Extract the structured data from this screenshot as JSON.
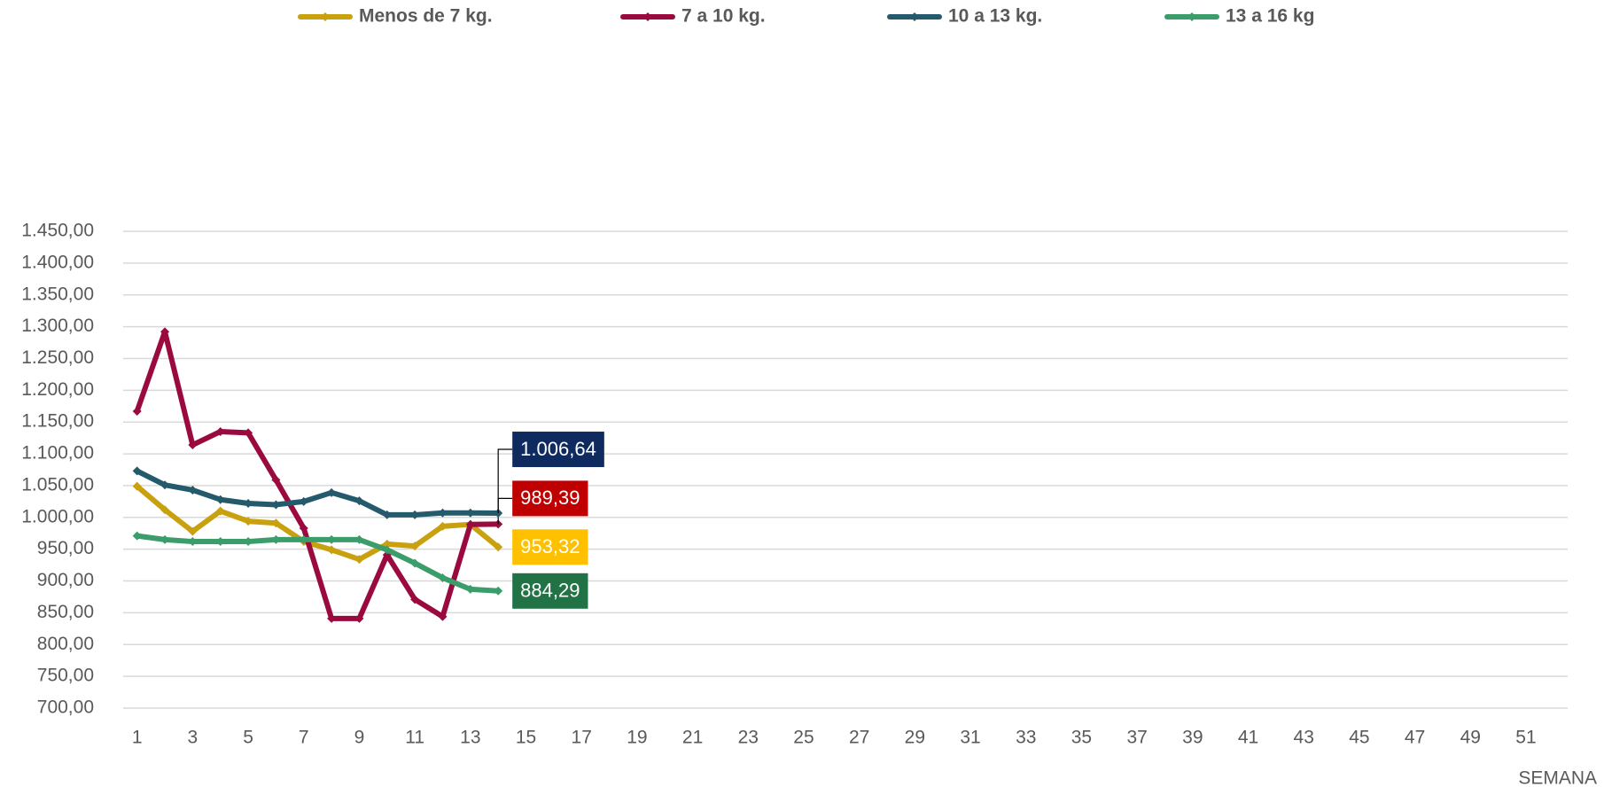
{
  "chart_data": {
    "type": "line",
    "x": [
      1,
      2,
      3,
      4,
      5,
      6,
      7,
      8,
      9,
      10,
      11,
      12,
      13,
      14
    ],
    "xlim": [
      0.5,
      52.5
    ],
    "xticks": [
      1,
      3,
      5,
      7,
      9,
      11,
      13,
      15,
      17,
      19,
      21,
      23,
      25,
      27,
      29,
      31,
      33,
      35,
      37,
      39,
      41,
      43,
      45,
      47,
      49,
      51
    ],
    "x_label": "SEMANA",
    "ylim": [
      700,
      1450
    ],
    "yticks": [
      {
        "value": 700,
        "label": "700,00"
      },
      {
        "value": 750,
        "label": "750,00"
      },
      {
        "value": 800,
        "label": "800,00"
      },
      {
        "value": 850,
        "label": "850,00"
      },
      {
        "value": 900,
        "label": "900,00"
      },
      {
        "value": 950,
        "label": "950,00"
      },
      {
        "value": 1000,
        "label": "1.000,00"
      },
      {
        "value": 1050,
        "label": "1.050,00"
      },
      {
        "value": 1100,
        "label": "1.100,00"
      },
      {
        "value": 1150,
        "label": "1.150,00"
      },
      {
        "value": 1200,
        "label": "1.200,00"
      },
      {
        "value": 1250,
        "label": "1.250,00"
      },
      {
        "value": 1300,
        "label": "1.300,00"
      },
      {
        "value": 1350,
        "label": "1.350,00"
      },
      {
        "value": 1400,
        "label": "1.400,00"
      },
      {
        "value": 1450,
        "label": "1.450,00"
      }
    ],
    "grid": true,
    "legend": "top",
    "series": [
      {
        "name": "Menos de 7 kg.",
        "color": "#c9a00e",
        "label_color": "#ffc000",
        "values": [
          1049,
          1012,
          978,
          1010,
          994,
          991,
          962,
          949,
          934,
          958,
          955,
          986,
          989,
          953.32
        ],
        "value_labels": [
          null,
          null,
          null,
          null,
          null,
          null,
          null,
          null,
          null,
          null,
          null,
          null,
          null,
          "953,32"
        ]
      },
      {
        "name": "7 a 10 kg.",
        "color": "#9b0a3f",
        "label_color": "#c00000",
        "values": [
          1167,
          1292,
          1114,
          1135,
          1133,
          1059,
          983,
          841,
          841,
          941,
          871,
          844,
          989,
          989.39
        ],
        "value_labels": [
          null,
          null,
          null,
          null,
          null,
          null,
          null,
          null,
          null,
          null,
          null,
          null,
          null,
          "989,39"
        ]
      },
      {
        "name": "10 a 13 kg.",
        "color": "#245a6b",
        "label_color": "#0e2a5e",
        "values": [
          1073,
          1051,
          1043,
          1028,
          1022,
          1020,
          1025,
          1039,
          1026,
          1004,
          1004,
          1007,
          1007,
          1006.64
        ],
        "value_labels": [
          null,
          null,
          null,
          null,
          null,
          null,
          null,
          null,
          null,
          null,
          null,
          null,
          null,
          "1.006,64"
        ]
      },
      {
        "name": "13 a 16 kg",
        "color": "#3a9d6a",
        "label_color": "#217346",
        "values": [
          971,
          965,
          962,
          962,
          962,
          965,
          965,
          965,
          965,
          949,
          928,
          905,
          887,
          884.29
        ],
        "value_labels": [
          null,
          null,
          null,
          null,
          null,
          null,
          null,
          null,
          null,
          null,
          null,
          null,
          null,
          "884,29"
        ]
      }
    ]
  }
}
